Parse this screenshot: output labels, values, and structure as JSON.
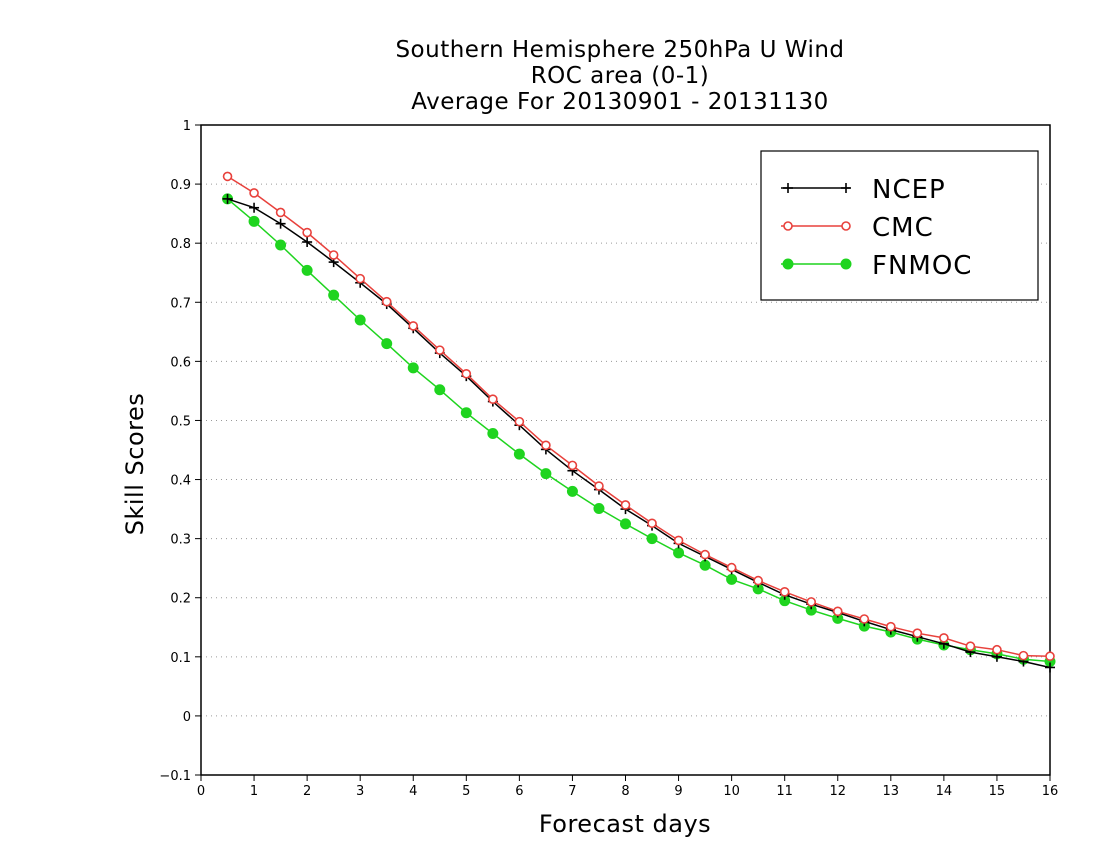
{
  "chart_data": {
    "type": "line",
    "title": [
      "Southern Hemisphere 250hPa U Wind",
      "ROC area (0-1)",
      "Average For 20130901 - 20131130"
    ],
    "xlabel": "Forecast days",
    "ylabel": "Skill Scores",
    "xlim": [
      0,
      16
    ],
    "ylim": [
      -0.1,
      1
    ],
    "xticks": [
      0,
      1,
      2,
      3,
      4,
      5,
      6,
      7,
      8,
      9,
      10,
      11,
      12,
      13,
      14,
      15,
      16
    ],
    "yticks": [
      -0.1,
      0,
      0.1,
      0.2,
      0.3,
      0.4,
      0.5,
      0.6,
      0.7,
      0.8,
      0.9,
      1
    ],
    "ytick_labels": [
      "−0.1",
      "0",
      "0.1",
      "0.2",
      "0.3",
      "0.4",
      "0.5",
      "0.6",
      "0.7",
      "0.8",
      "0.9",
      "1"
    ],
    "grid": "horizontal dotted",
    "legend_position": "top-right",
    "x": [
      0.5,
      1,
      1.5,
      2,
      2.5,
      3,
      3.5,
      4,
      4.5,
      5,
      5.5,
      6,
      6.5,
      7,
      7.5,
      8,
      8.5,
      9,
      9.5,
      10,
      10.5,
      11,
      11.5,
      12,
      12.5,
      13,
      13.5,
      14,
      14.5,
      15,
      15.5,
      16
    ],
    "series": [
      {
        "name": "NCEP",
        "color": "#000000",
        "marker": "plus",
        "values": [
          0.875,
          0.86,
          0.833,
          0.802,
          0.768,
          0.733,
          0.697,
          0.656,
          0.614,
          0.575,
          0.532,
          0.492,
          0.451,
          0.415,
          0.383,
          0.35,
          0.322,
          0.292,
          0.27,
          0.248,
          0.226,
          0.205,
          0.189,
          0.175,
          0.16,
          0.146,
          0.134,
          0.122,
          0.108,
          0.1,
          0.092,
          0.082
        ]
      },
      {
        "name": "CMC",
        "color": "#e8413c",
        "marker": "open-circle",
        "values": [
          0.913,
          0.885,
          0.852,
          0.818,
          0.78,
          0.74,
          0.701,
          0.66,
          0.619,
          0.579,
          0.536,
          0.498,
          0.458,
          0.424,
          0.389,
          0.357,
          0.326,
          0.297,
          0.273,
          0.251,
          0.229,
          0.21,
          0.193,
          0.177,
          0.164,
          0.151,
          0.14,
          0.132,
          0.118,
          0.112,
          0.102,
          0.101
        ]
      },
      {
        "name": "FNMOC",
        "color": "#1fd41f",
        "marker": "filled-circle",
        "values": [
          0.875,
          0.837,
          0.797,
          0.754,
          0.712,
          0.67,
          0.63,
          0.589,
          0.552,
          0.513,
          0.478,
          0.443,
          0.41,
          0.38,
          0.351,
          0.325,
          0.3,
          0.276,
          0.255,
          0.231,
          0.215,
          0.195,
          0.179,
          0.165,
          0.152,
          0.142,
          0.13,
          0.12,
          0.112,
          0.105,
          0.096,
          0.092
        ]
      }
    ]
  }
}
